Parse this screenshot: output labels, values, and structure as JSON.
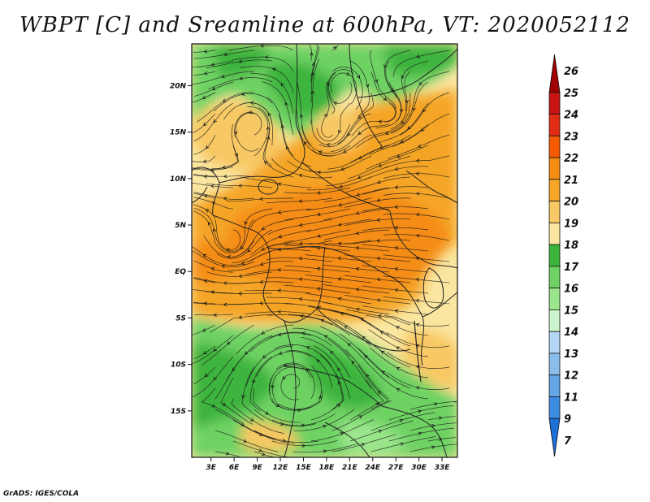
{
  "title": "WBPT [C] and Sreamline at 600hPa, VT: 2020052112",
  "credit": "GrADS: IGES/COLA",
  "map": {
    "lat_labels": [
      "20N",
      "15N",
      "10N",
      "5N",
      "EQ",
      "5S",
      "10S",
      "15S"
    ],
    "lon_labels": [
      "3E",
      "6E",
      "9E",
      "12E",
      "15E",
      "18E",
      "21E",
      "24E",
      "27E",
      "30E",
      "33E"
    ],
    "lat_values": [
      20,
      15,
      10,
      5,
      0,
      -5,
      -10,
      -15
    ],
    "lon_values": [
      3,
      6,
      9,
      12,
      15,
      18,
      21,
      24,
      27,
      30,
      33
    ],
    "extent": {
      "lon_min": 0.5,
      "lon_max": 35,
      "lat_min": -20,
      "lat_max": 24.5
    }
  },
  "colorbar": {
    "labels": [
      "26",
      "25",
      "24",
      "23",
      "22",
      "21",
      "20",
      "19",
      "18",
      "17",
      "16",
      "15",
      "14",
      "13",
      "12",
      "11",
      "9",
      "7"
    ],
    "colors": [
      "#a00000",
      "#c81414",
      "#e12d14",
      "#f55a00",
      "#f58c14",
      "#f5a528",
      "#f7c864",
      "#fae6a0",
      "#3cb43c",
      "#6ed264",
      "#9be68c",
      "#cdf5cd",
      "#b4d7f5",
      "#8cbeeb",
      "#64a5e6",
      "#3c8ce1",
      "#1e6ed7"
    ]
  },
  "colors": {
    "green_dark": "#3cb43c",
    "green_mid": "#6ed264",
    "green_light": "#9be68c",
    "cream": "#fae6a0",
    "yellow": "#f7c864",
    "orange_light": "#f5a528",
    "orange": "#f58c14"
  }
}
